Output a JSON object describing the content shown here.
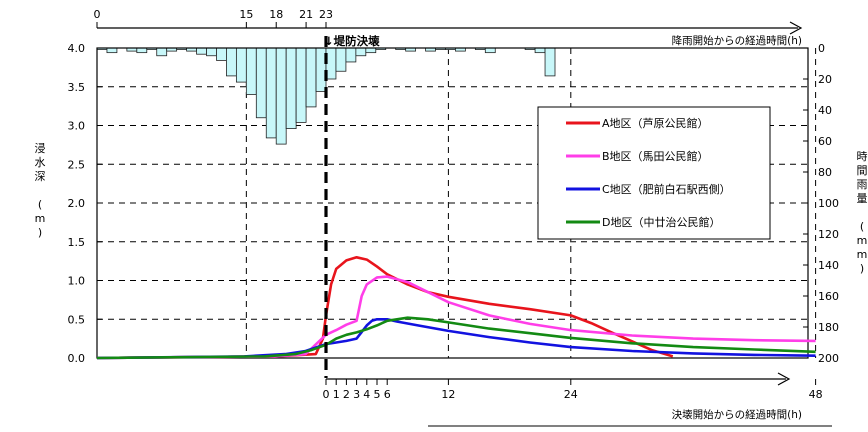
{
  "chart_data": {
    "type": "line",
    "title": "",
    "top_axis": {
      "label": "降雨開始からの経過時間(h)",
      "ticks": [
        0,
        15,
        18,
        21,
        23
      ]
    },
    "bottom_axis": {
      "label": "決壊開始からの経過時間(h)",
      "ticks": [
        0,
        1,
        2,
        3,
        4,
        5,
        6,
        12,
        24,
        48
      ]
    },
    "ylabel_left": "浸水深 (m)",
    "ylim_left": [
      0,
      4.0
    ],
    "yticks_left": [
      "0.0",
      "0.5",
      "1.0",
      "1.5",
      "2.0",
      "2.5",
      "3.0",
      "3.5",
      "4.0"
    ],
    "ylim_right": [
      0,
      200
    ],
    "yticks_right": [
      "0",
      "20",
      "40",
      "60",
      "80",
      "100",
      "120",
      "140",
      "160",
      "180",
      "200"
    ],
    "ylabel_right": "時間雨量 (mm)",
    "annotation": "↓堤防決壊",
    "legend_position": "right",
    "grid": true,
    "series": [
      {
        "name": "A地区（芦原公民館）",
        "color": "#e8141c",
        "points": [
          [
            -23,
            0
          ],
          [
            -5,
            0.02
          ],
          [
            -1,
            0.05
          ],
          [
            -0.3,
            0.25
          ],
          [
            0,
            0.55
          ],
          [
            0.5,
            0.95
          ],
          [
            1,
            1.15
          ],
          [
            2,
            1.26
          ],
          [
            3,
            1.3
          ],
          [
            4,
            1.27
          ],
          [
            5,
            1.18
          ],
          [
            6,
            1.08
          ],
          [
            8,
            0.95
          ],
          [
            10,
            0.85
          ],
          [
            12,
            0.79
          ],
          [
            16,
            0.7
          ],
          [
            20,
            0.63
          ],
          [
            24,
            0.55
          ],
          [
            26,
            0.45
          ],
          [
            28,
            0.33
          ],
          [
            32,
            0.1
          ],
          [
            34,
            0.02
          ]
        ]
      },
      {
        "name": "B地区（馬田公民館）",
        "color": "#ff3ee8",
        "points": [
          [
            -23,
            0
          ],
          [
            -5,
            0.02
          ],
          [
            -2,
            0.05
          ],
          [
            0,
            0.3
          ],
          [
            1,
            0.36
          ],
          [
            2,
            0.43
          ],
          [
            3,
            0.48
          ],
          [
            3.5,
            0.8
          ],
          [
            4,
            0.95
          ],
          [
            5,
            1.04
          ],
          [
            6,
            1.05
          ],
          [
            8,
            0.98
          ],
          [
            12,
            0.72
          ],
          [
            16,
            0.55
          ],
          [
            20,
            0.44
          ],
          [
            24,
            0.36
          ],
          [
            30,
            0.29
          ],
          [
            36,
            0.25
          ],
          [
            42,
            0.23
          ],
          [
            48,
            0.22
          ]
        ]
      },
      {
        "name": "C地区（肥前白石駅西側）",
        "color": "#1212e0",
        "points": [
          [
            -23,
            0
          ],
          [
            -8,
            0.02
          ],
          [
            -4,
            0.05
          ],
          [
            -2,
            0.09
          ],
          [
            0,
            0.18
          ],
          [
            1,
            0.2
          ],
          [
            2,
            0.22
          ],
          [
            3,
            0.25
          ],
          [
            4,
            0.42
          ],
          [
            4.5,
            0.48
          ],
          [
            5,
            0.5
          ],
          [
            6,
            0.5
          ],
          [
            7,
            0.47
          ],
          [
            9,
            0.42
          ],
          [
            12,
            0.35
          ],
          [
            16,
            0.27
          ],
          [
            20,
            0.2
          ],
          [
            24,
            0.14
          ],
          [
            30,
            0.09
          ],
          [
            36,
            0.06
          ],
          [
            42,
            0.04
          ],
          [
            48,
            0.03
          ]
        ]
      },
      {
        "name": "D地区（中廿治公民館）",
        "color": "#138a13",
        "points": [
          [
            -23,
            0
          ],
          [
            -6,
            0.02
          ],
          [
            -3,
            0.05
          ],
          [
            -1.5,
            0.1
          ],
          [
            0,
            0.17
          ],
          [
            1,
            0.25
          ],
          [
            2,
            0.3
          ],
          [
            3,
            0.33
          ],
          [
            4,
            0.37
          ],
          [
            5,
            0.42
          ],
          [
            6,
            0.48
          ],
          [
            8,
            0.52
          ],
          [
            10,
            0.5
          ],
          [
            12,
            0.46
          ],
          [
            16,
            0.38
          ],
          [
            20,
            0.32
          ],
          [
            24,
            0.26
          ],
          [
            30,
            0.19
          ],
          [
            36,
            0.14
          ],
          [
            42,
            0.11
          ],
          [
            48,
            0.08
          ]
        ]
      }
    ],
    "rainfall": {
      "label": "時間雨量",
      "units": "mm",
      "x_start_hour": 0,
      "values": [
        1,
        3,
        0,
        2,
        3,
        1,
        5,
        2,
        1,
        2,
        4,
        5,
        8,
        18,
        22,
        30,
        45,
        58,
        62,
        52,
        48,
        38,
        28,
        20,
        15,
        9,
        5,
        3,
        1,
        0,
        1,
        2,
        0,
        2,
        1,
        1,
        2,
        0,
        1,
        3,
        0,
        0,
        0,
        1,
        3,
        18,
        0,
        0
      ]
    }
  }
}
